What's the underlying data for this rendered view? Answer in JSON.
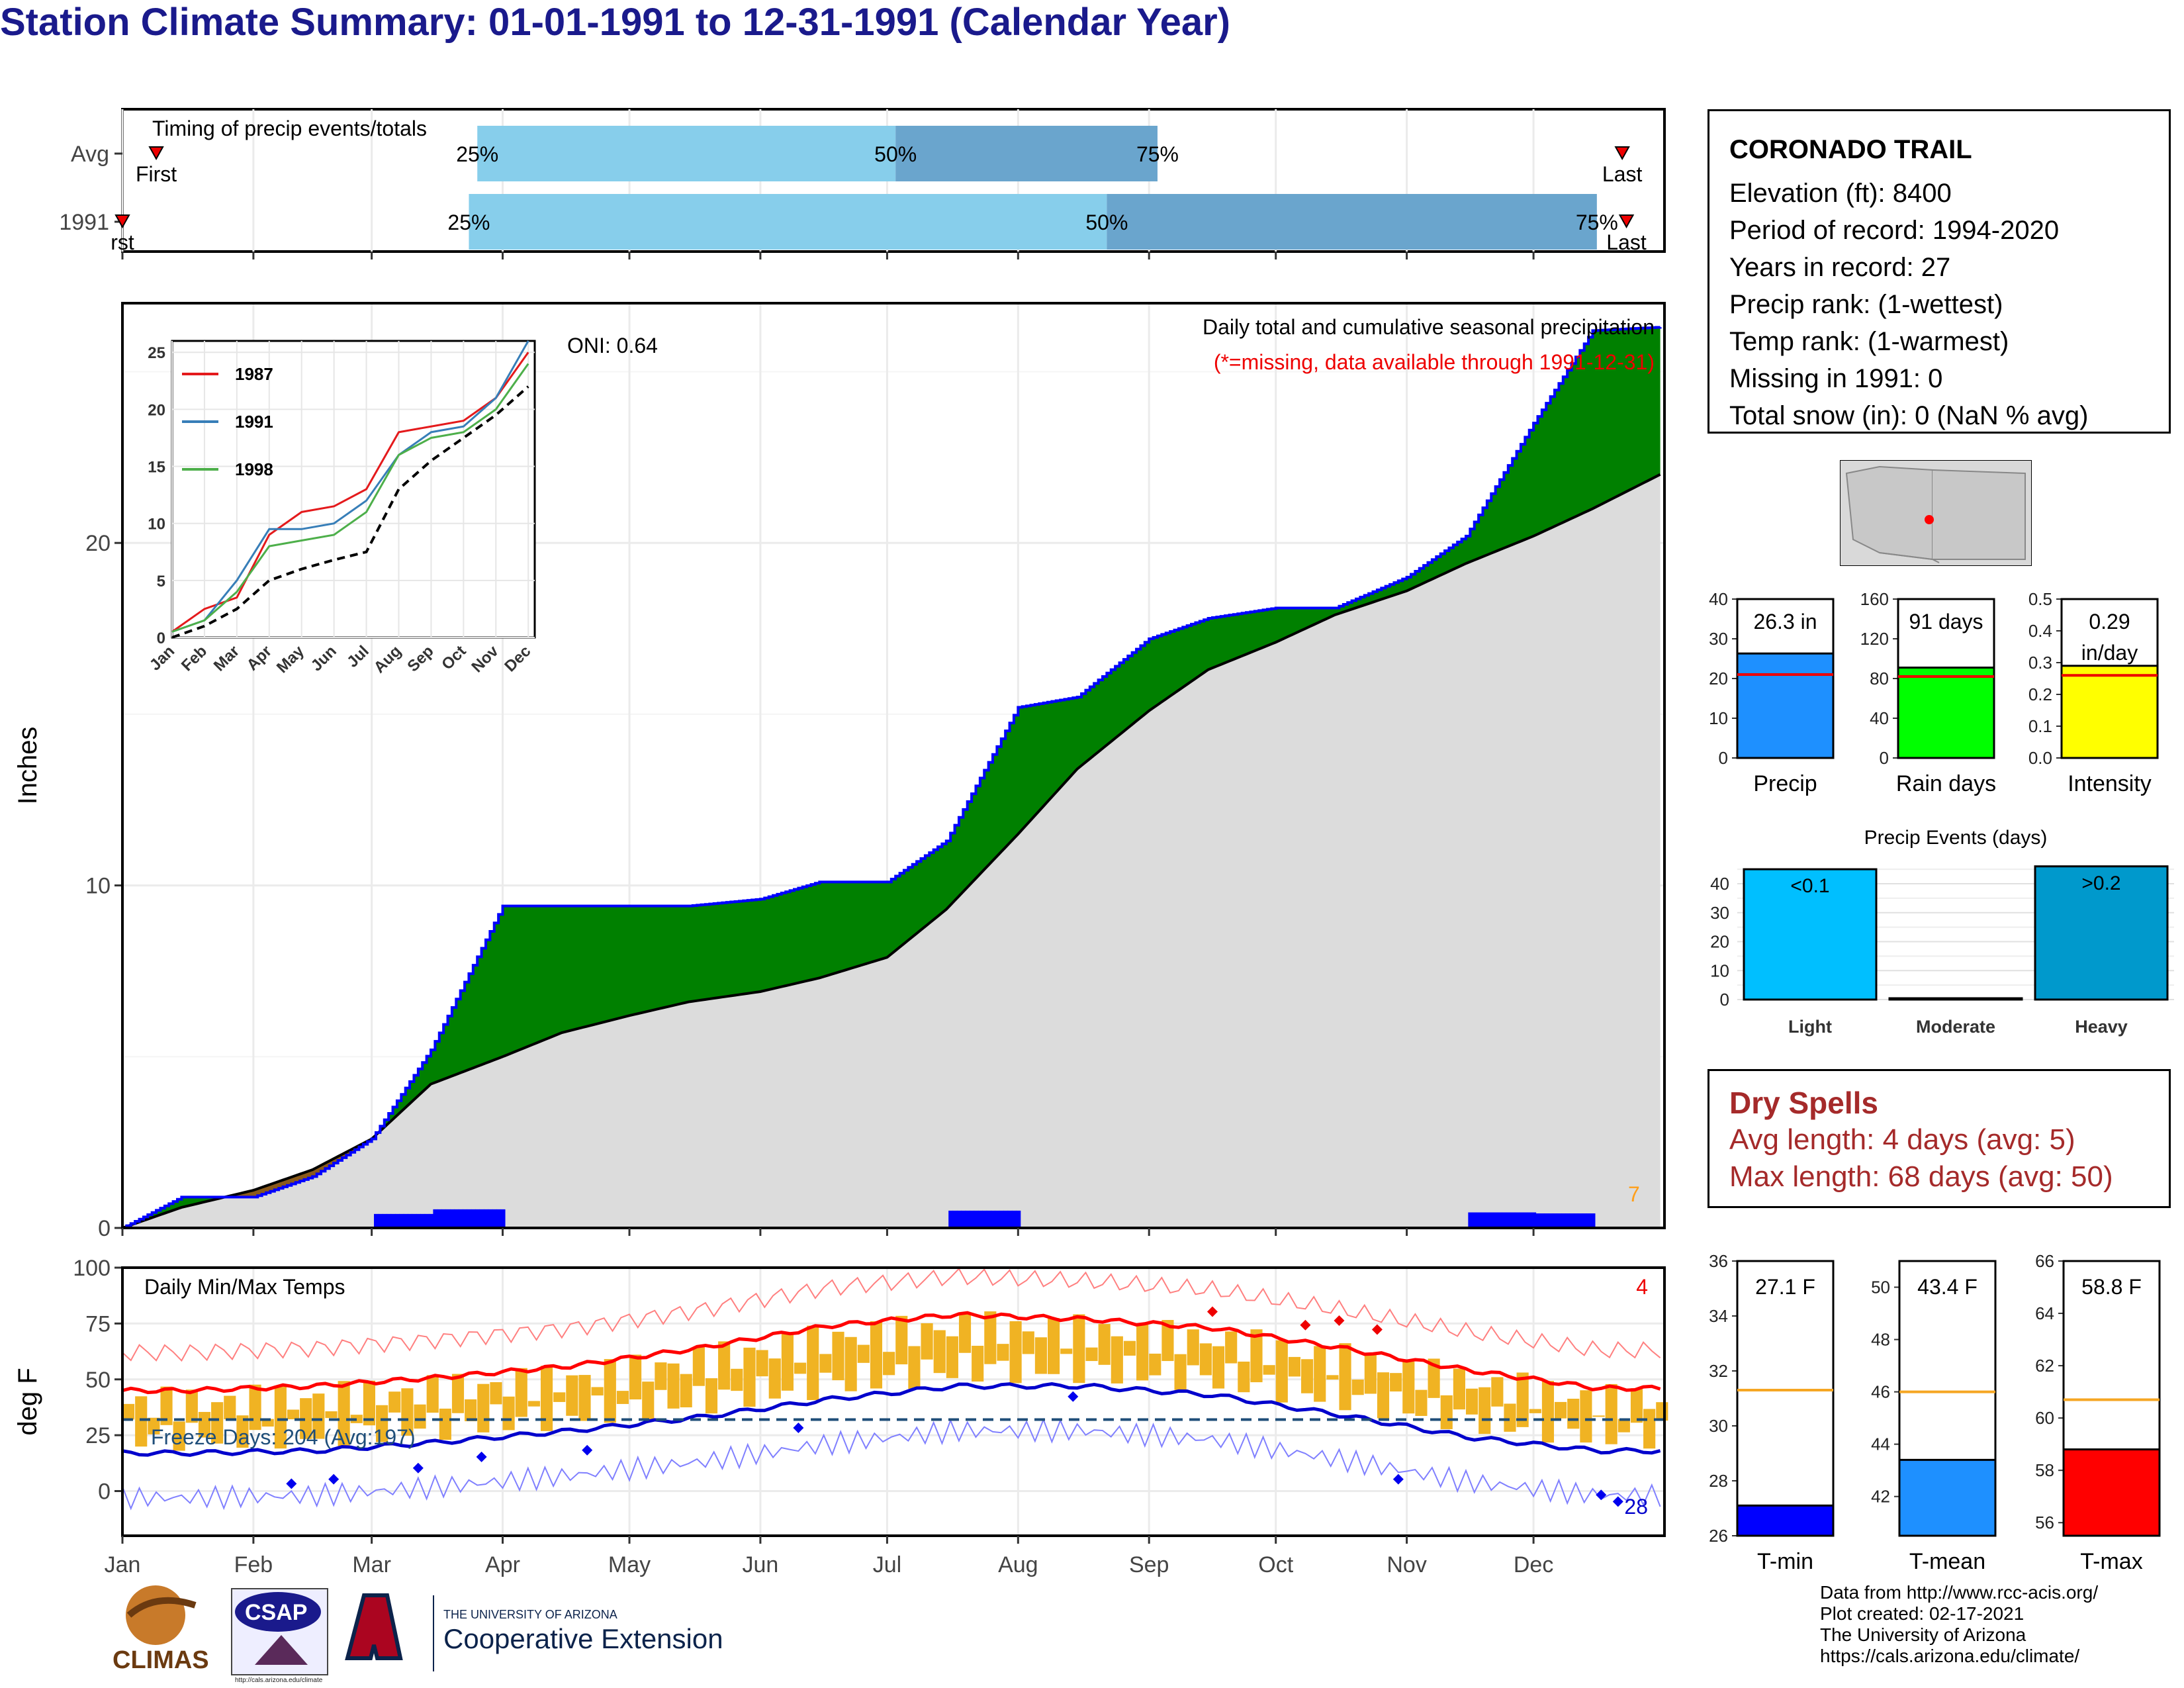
{
  "title": "Station Climate Summary: 01-01-1991 to 12-31-1991 (Calendar Year)",
  "months": [
    "Jan",
    "Feb",
    "Mar",
    "Apr",
    "May",
    "Jun",
    "Jul",
    "Aug",
    "Sep",
    "Oct",
    "Nov",
    "Dec"
  ],
  "timing": {
    "label": "Timing of precip events/totals",
    "rows": [
      {
        "label": "Avg",
        "first": "First",
        "last": "Last",
        "p25": "25%",
        "p50": "50%",
        "p75": "75%"
      },
      {
        "label": "1991",
        "first": "rst",
        "last": "Last",
        "p25": "25%",
        "p50": "50%",
        "p75": "75%"
      }
    ]
  },
  "precip": {
    "ylabel": "Inches",
    "note_title": "Daily total and cumulative seasonal precipitation",
    "note_missing": "(*=missing, data available through 1991-12-31)",
    "oni": "ONI: 0.64",
    "corner_count": "7",
    "yticks": [
      "0",
      "10",
      "20"
    ]
  },
  "inset": {
    "yticks": [
      "0",
      "5",
      "10",
      "15",
      "20",
      "25"
    ],
    "months": [
      "Jan",
      "Feb",
      "Mar",
      "Apr",
      "May",
      "Jun",
      "Jul",
      "Aug",
      "Sep",
      "Oct",
      "Nov",
      "Dec"
    ],
    "legend": [
      {
        "name": "1987",
        "color": "#e41a1c"
      },
      {
        "name": "1991",
        "color": "#377eb8"
      },
      {
        "name": "1998",
        "color": "#4daf4a"
      }
    ]
  },
  "temps": {
    "ylabel": "deg F",
    "label": "Daily Min/Max Temps",
    "freeze": "Freeze Days: 204 (Avg:197)",
    "hot_count": "4",
    "cold_count": "28",
    "yticks": [
      "0",
      "25",
      "50",
      "75",
      "100"
    ]
  },
  "info": {
    "station": "CORONADO TRAIL",
    "lines": [
      "Elevation (ft): 8400",
      "Period of record: 1994-2020",
      "Years in record: 27",
      "Precip rank:  (1-wettest)",
      "Temp rank:  (1-warmest)",
      "Missing in 1991: 0",
      "Total snow (in): 0 (NaN % avg)"
    ]
  },
  "mini_bars": [
    {
      "label": "Precip",
      "value_label": "26.3 in",
      "value": 26.3,
      "avg": 21,
      "max": 40,
      "ticks": [
        "0",
        "10",
        "20",
        "30",
        "40"
      ],
      "color": "#1e90ff"
    },
    {
      "label": "Rain days",
      "value_label": "91 days",
      "value": 91,
      "avg": 82,
      "max": 160,
      "ticks": [
        "0",
        "40",
        "80",
        "120",
        "160"
      ],
      "color": "#00ff00"
    },
    {
      "label": "Intensity",
      "value_label": "0.29",
      "value_label2": "in/day",
      "value": 0.29,
      "avg": 0.26,
      "max": 0.5,
      "ticks": [
        "0.0",
        "0.1",
        "0.2",
        "0.3",
        "0.4",
        "0.5"
      ],
      "color": "#ffff00"
    }
  ],
  "events": {
    "title": "Precip Events (days)",
    "ticks": [
      "0",
      "10",
      "20",
      "30",
      "40"
    ],
    "bars": [
      {
        "label": "Light",
        "value": 45,
        "text": "<0.1",
        "color": "#00bfff"
      },
      {
        "label": "Moderate",
        "value": 0,
        "text": "",
        "color": "#3399cc"
      },
      {
        "label": "Heavy",
        "value": 46,
        "text": ">0.2",
        "color": "#0099cc"
      }
    ]
  },
  "dry_spells": {
    "title": "Dry Spells",
    "avg": "Avg length: 4 days (avg: 5)",
    "max": "Max length: 68 days (avg: 50)"
  },
  "temp_bars": [
    {
      "label": "T-min",
      "value_label": "27.1 F",
      "value": 27.1,
      "avg": 31.3,
      "min": 26,
      "max": 36,
      "ticks": [
        "26",
        "28",
        "30",
        "32",
        "34",
        "36"
      ],
      "color": "#0000ff"
    },
    {
      "label": "T-mean",
      "value_label": "43.4 F",
      "value": 43.4,
      "avg": 46,
      "min": 40.5,
      "max": 51,
      "ticks": [
        "42",
        "44",
        "46",
        "48",
        "50"
      ],
      "color": "#1e90ff"
    },
    {
      "label": "T-max",
      "value_label": "58.8 F",
      "value": 58.8,
      "avg": 60.7,
      "min": 55.5,
      "max": 66,
      "ticks": [
        "56",
        "58",
        "60",
        "62",
        "64",
        "66"
      ],
      "color": "#ff0000"
    }
  ],
  "footer": [
    "Data from http://www.rcc-acis.org/",
    "Plot created: 02-17-2021",
    "The University of Arizona",
    "https://cals.arizona.edu/climate/"
  ],
  "logos": {
    "climas": "CLIMAS",
    "csap": "CSAP",
    "ua_small": "THE UNIVERSITY OF ARIZONA",
    "ua_big": "Cooperative Extension",
    "csap_url": "http://cals.arizona.edu/climate"
  },
  "chart_data": [
    {
      "type": "area",
      "title": "Daily total and cumulative seasonal precipitation",
      "ylabel": "Inches",
      "x": [
        "Jan 1",
        "Jan 15",
        "Feb 1",
        "Feb 15",
        "Mar 1",
        "Mar 15",
        "Apr 1",
        "Apr 15",
        "May 1",
        "May 15",
        "Jun 1",
        "Jun 15",
        "Jul 1",
        "Jul 15",
        "Aug 1",
        "Aug 15",
        "Sep 1",
        "Sep 15",
        "Oct 1",
        "Oct 15",
        "Nov 1",
        "Nov 15",
        "Dec 1",
        "Dec 15",
        "Dec 31"
      ],
      "series": [
        {
          "name": "1991",
          "values": [
            0.0,
            0.9,
            0.9,
            1.5,
            2.6,
            5.2,
            9.4,
            9.4,
            9.4,
            9.4,
            9.6,
            10.1,
            10.1,
            11.3,
            15.2,
            15.5,
            17.2,
            17.8,
            18.1,
            18.1,
            19.0,
            20.2,
            23.5,
            26.2,
            26.3
          ]
        },
        {
          "name": "Avg",
          "values": [
            0.0,
            0.6,
            1.1,
            1.7,
            2.6,
            4.2,
            5.0,
            5.7,
            6.2,
            6.6,
            6.9,
            7.3,
            7.9,
            9.3,
            11.5,
            13.4,
            15.1,
            16.3,
            17.1,
            17.9,
            18.6,
            19.4,
            20.2,
            21.0,
            22.0
          ]
        }
      ],
      "ylim": [
        0,
        27
      ]
    },
    {
      "type": "line",
      "title": "",
      "x": [
        "Jan",
        "Feb",
        "Mar",
        "Apr",
        "May",
        "Jun",
        "Jul",
        "Aug",
        "Sep",
        "Oct",
        "Nov",
        "Dec"
      ],
      "series": [
        {
          "name": "1987",
          "values": [
            0.5,
            2.5,
            3.5,
            9,
            11,
            11.5,
            13,
            18,
            18.5,
            19,
            21,
            25
          ]
        },
        {
          "name": "1991",
          "values": [
            0.5,
            1.5,
            5,
            9.5,
            9.5,
            10,
            12,
            16,
            18,
            18.5,
            21,
            26
          ]
        },
        {
          "name": "1998",
          "values": [
            0.5,
            1.5,
            4,
            8,
            8.5,
            9,
            11,
            16,
            17.5,
            18,
            20,
            24
          ]
        },
        {
          "name": "Avg",
          "values": [
            0,
            1,
            2.5,
            5,
            6,
            6.8,
            7.5,
            13,
            15.5,
            17.5,
            19.5,
            22
          ]
        }
      ],
      "ylim": [
        0,
        26
      ]
    },
    {
      "type": "line",
      "title": "Daily Min/Max Temps",
      "ylabel": "deg F",
      "x": [
        "Jan",
        "Feb",
        "Mar",
        "Apr",
        "May",
        "Jun",
        "Jul",
        "Aug",
        "Sep",
        "Oct",
        "Nov",
        "Dec"
      ],
      "series": [
        {
          "name": "Avg max",
          "values": [
            45,
            47,
            51,
            56,
            64,
            74,
            79,
            77,
            73,
            64,
            54,
            46
          ]
        },
        {
          "name": "Avg min",
          "values": [
            17,
            18,
            22,
            27,
            33,
            41,
            47,
            47,
            43,
            34,
            24,
            18
          ]
        },
        {
          "name": "Freeze threshold",
          "values": [
            32,
            32,
            32,
            32,
            32,
            32,
            32,
            32,
            32,
            32,
            32,
            32
          ]
        }
      ],
      "ylim": [
        -20,
        100
      ]
    },
    {
      "type": "bar",
      "categories": [
        "Precip",
        "Rain days",
        "Intensity"
      ],
      "values": [
        26.3,
        91,
        0.29
      ]
    },
    {
      "type": "bar",
      "title": "Precip Events (days)",
      "categories": [
        "Light",
        "Moderate",
        "Heavy"
      ],
      "values": [
        45,
        0,
        46
      ]
    },
    {
      "type": "bar",
      "categories": [
        "T-min",
        "T-mean",
        "T-max"
      ],
      "values": [
        27.1,
        43.4,
        58.8
      ]
    }
  ]
}
